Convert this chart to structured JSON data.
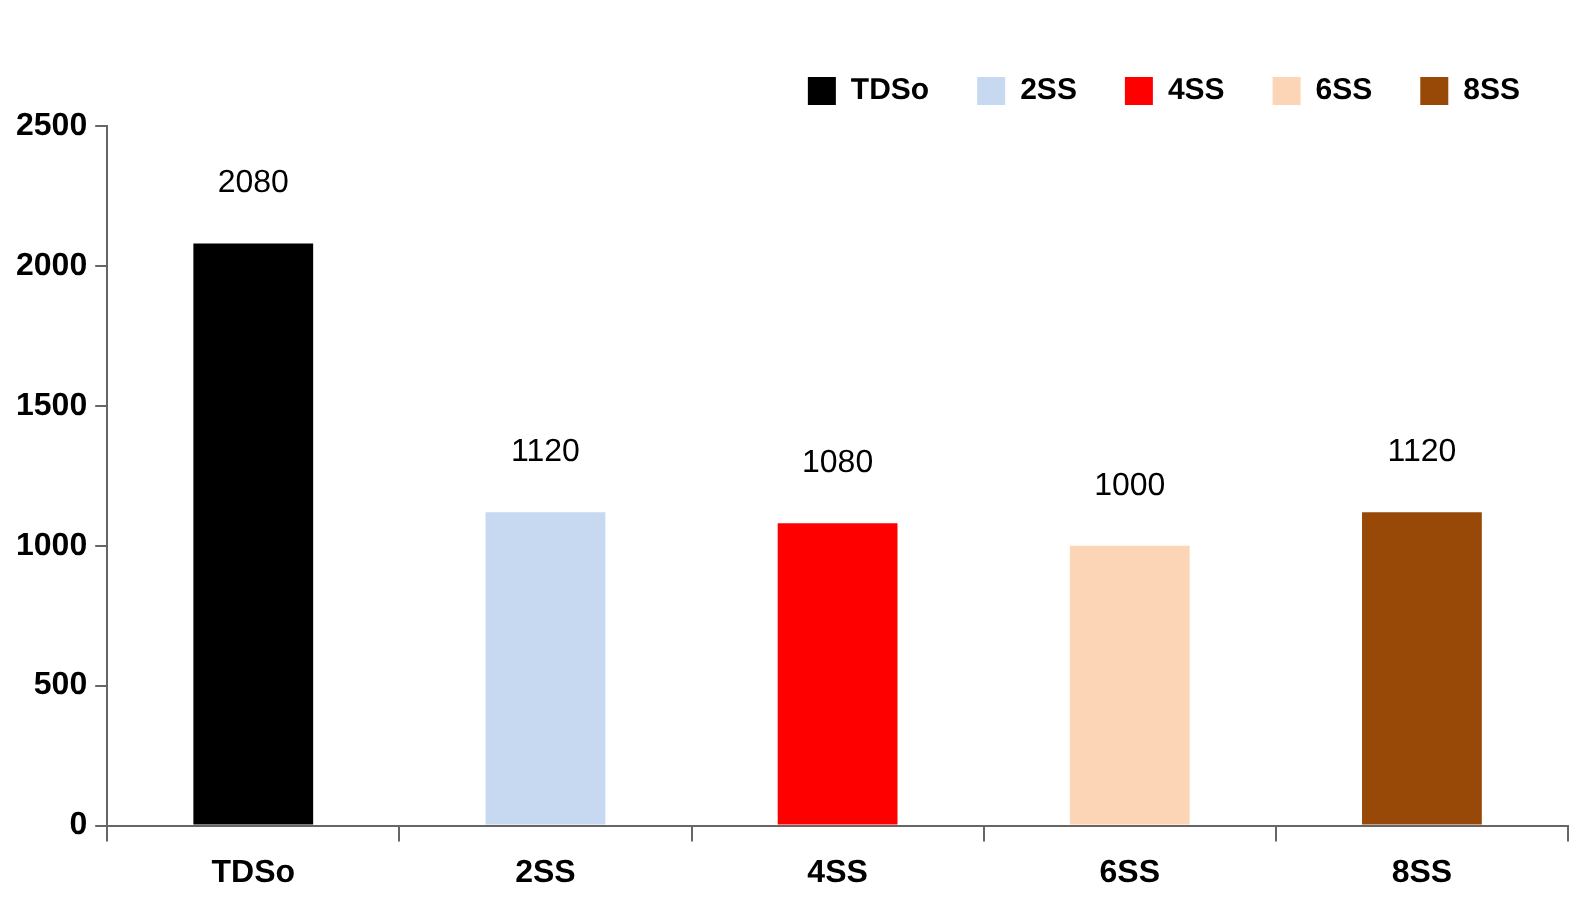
{
  "chart_data": {
    "type": "bar",
    "categories": [
      "TDSo",
      "2SS",
      "4SS",
      "6SS",
      "8SS"
    ],
    "series": [
      {
        "name": "TDSo",
        "color": "#000000",
        "values": [
          2080,
          null,
          null,
          null,
          null
        ]
      },
      {
        "name": "2SS",
        "color": "#c6d9f1",
        "values": [
          null,
          1120,
          null,
          null,
          null
        ]
      },
      {
        "name": "4SS",
        "color": "#ff0000",
        "values": [
          null,
          null,
          1080,
          null,
          null
        ]
      },
      {
        "name": "6SS",
        "color": "#fbd5b5",
        "values": [
          null,
          null,
          null,
          1000,
          null
        ]
      },
      {
        "name": "8SS",
        "color": "#984807",
        "values": [
          null,
          null,
          null,
          null,
          1120
        ]
      }
    ],
    "ylim": [
      0,
      2500
    ],
    "yticks": [
      0,
      500,
      1000,
      1500,
      2000,
      2500
    ],
    "grid": false,
    "legend": "top right",
    "data_labels": true
  }
}
